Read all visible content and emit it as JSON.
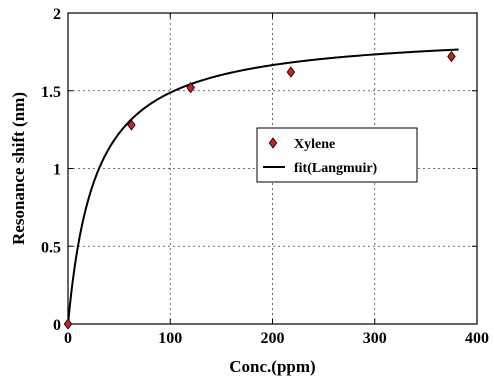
{
  "chart_data": {
    "type": "scatter",
    "xlabel": "Conc.(ppm)",
    "ylabel": "Resonance shift (nm)",
    "xlim": [
      0,
      400
    ],
    "ylim": [
      0,
      2
    ],
    "xticks": [
      0,
      100,
      200,
      300,
      400
    ],
    "yticks": [
      0,
      0.5,
      1,
      1.5,
      2
    ],
    "xtick_labels": [
      "0",
      "100",
      "200",
      "300",
      "400"
    ],
    "ytick_labels": [
      "0",
      "0.5",
      "1",
      "1.5",
      "2"
    ],
    "grid": true,
    "legend_position": "center-right",
    "series": [
      {
        "name": "Xylene",
        "kind": "scatter",
        "marker": "diamond",
        "color": "#cc1f1f",
        "edge_color": "#000000",
        "x": [
          0,
          62,
          120,
          218,
          375
        ],
        "y": [
          0,
          1.28,
          1.52,
          1.62,
          1.72
        ]
      },
      {
        "name": "fit(Langmuir)",
        "kind": "line",
        "color": "#000000",
        "model": "langmuir",
        "qmax": 1.89,
        "k": 0.037,
        "x_range": [
          0,
          382
        ]
      }
    ]
  }
}
